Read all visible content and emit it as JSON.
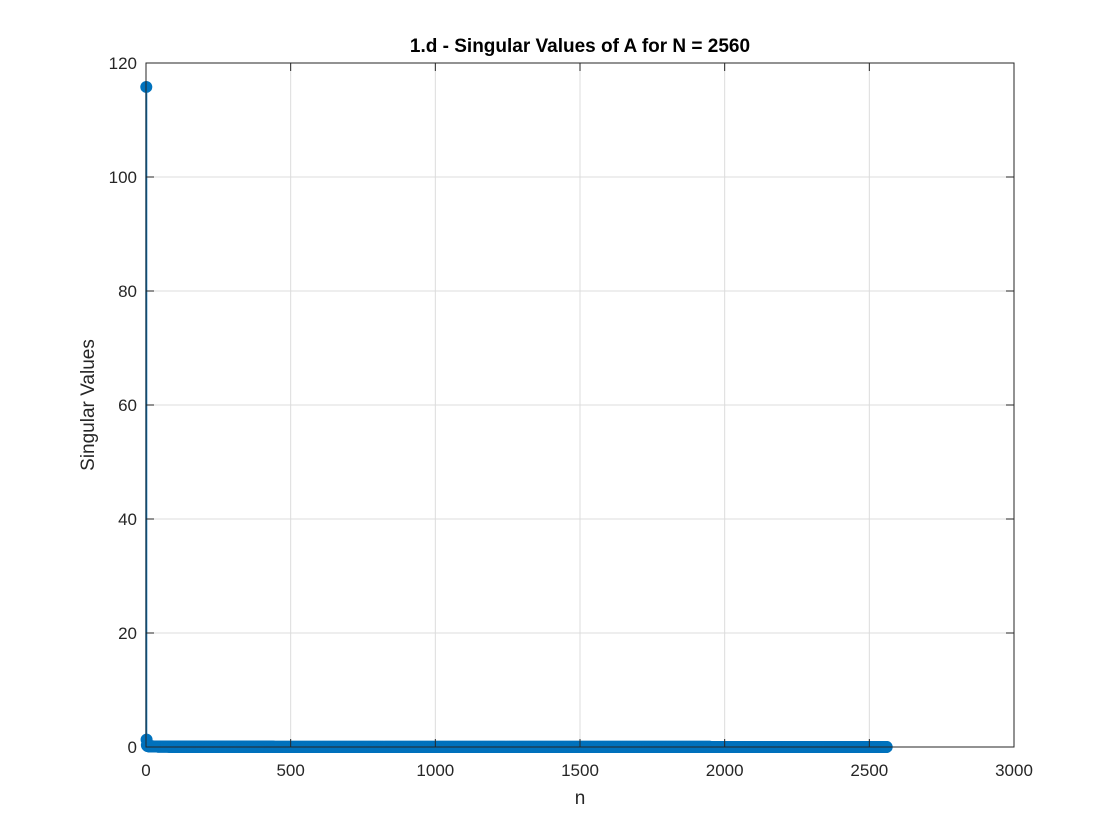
{
  "chart_data": {
    "type": "scatter",
    "style": "stem",
    "title": "1.d - Singular Values of A for N = 2560",
    "xlabel": "n",
    "ylabel": "Singular Values",
    "xlim": [
      0,
      3000
    ],
    "ylim": [
      0,
      120
    ],
    "xticks": [
      "0",
      "500",
      "1000",
      "1500",
      "2000",
      "2500",
      "3000"
    ],
    "yticks": [
      "0",
      "20",
      "40",
      "60",
      "80",
      "100",
      "120"
    ],
    "grid": true,
    "color": "#0072BD",
    "n_points": 2560,
    "series": [
      {
        "x": [
          1,
          2,
          3,
          4,
          5,
          10,
          50,
          100,
          500,
          1000,
          1500,
          2000,
          2500,
          2560
        ],
        "y": [
          115.8,
          1.3,
          0.35,
          0.25,
          0.2,
          0.12,
          0.06,
          0.05,
          0.03,
          0.02,
          0.02,
          0.01,
          0.01,
          0.01
        ]
      }
    ]
  }
}
